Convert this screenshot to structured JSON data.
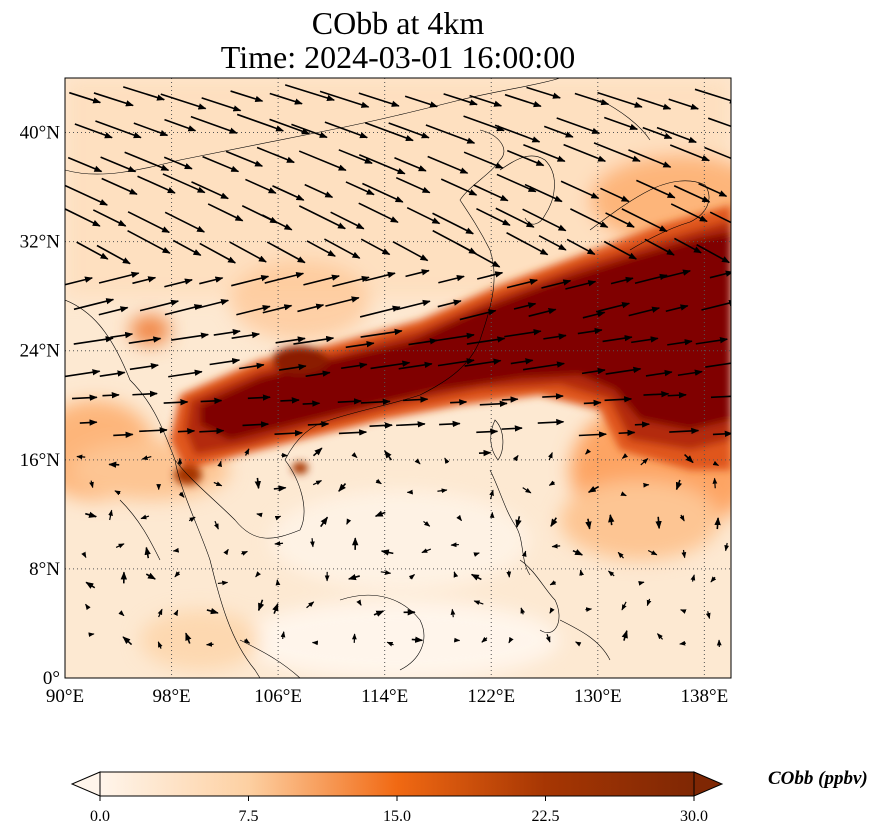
{
  "title": {
    "line1": "CObb at 4km",
    "line2": "Time: 2024-03-01 16:00:00"
  },
  "map": {
    "projection": "PlateCarree",
    "lon_range": [
      90,
      140
    ],
    "lat_range": [
      0,
      44
    ],
    "lon_ticks": [
      {
        "lon": 90,
        "label": "90°E"
      },
      {
        "lon": 98,
        "label": "98°E"
      },
      {
        "lon": 106,
        "label": "106°E"
      },
      {
        "lon": 114,
        "label": "114°E"
      },
      {
        "lon": 122,
        "label": "122°E"
      },
      {
        "lon": 130,
        "label": "130°E"
      },
      {
        "lon": 138,
        "label": "138°E"
      }
    ],
    "lat_ticks": [
      {
        "lat": 0,
        "label": "0°"
      },
      {
        "lat": 8,
        "label": "8°N"
      },
      {
        "lat": 16,
        "label": "16°N"
      },
      {
        "lat": 24,
        "label": "24°N"
      },
      {
        "lat": 32,
        "label": "32°N"
      },
      {
        "lat": 40,
        "label": "40°N"
      }
    ],
    "gridlines": "dotted",
    "variable": "CObb",
    "units": "ppbv",
    "plume": {
      "description_values_ppbv": {
        "background": 3,
        "core": 30
      },
      "axis_points": [
        [
          98,
          18.5
        ],
        [
          106,
          20
        ],
        [
          114,
          22.5
        ],
        [
          122,
          25.5
        ],
        [
          130,
          28
        ],
        [
          140,
          31
        ]
      ]
    }
  },
  "colorbar": {
    "label": "CObb (ppbv)",
    "min": 0.0,
    "max": 30.0,
    "extend": "both",
    "ticks": [
      "0.0",
      "7.5",
      "15.0",
      "22.5",
      "30.0"
    ],
    "colors": [
      "#fff5eb",
      "#fee6ce",
      "#fdd0a2",
      "#fdae6b",
      "#fd8d3c",
      "#f16913",
      "#d94801",
      "#a63603",
      "#7f2704"
    ]
  }
}
